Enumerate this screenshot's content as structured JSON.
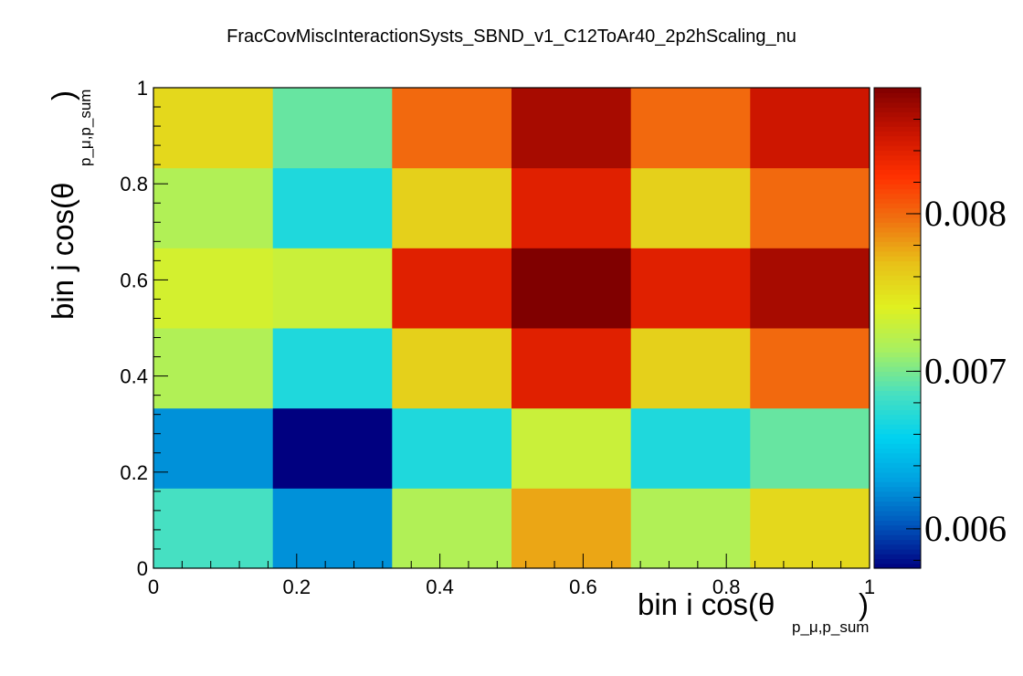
{
  "chart_data": {
    "type": "heatmap",
    "title": "FracCovMiscInteractionSysts_SBND_v1_C12ToAr40_2p2hScaling_nu",
    "xlabel": "bin i cos(θ",
    "xlabel_sub": "p_μ,p_sum",
    "xlabel_close": ")",
    "ylabel": "bin j cos(θ",
    "ylabel_sub": "p_μ,p_sum",
    "ylabel_close": ")",
    "xlim": [
      0,
      1
    ],
    "ylim": [
      0,
      1
    ],
    "x_ticks": [
      "0",
      "0.2",
      "0.4",
      "0.6",
      "0.8",
      "1"
    ],
    "y_ticks": [
      "0",
      "0.2",
      "0.4",
      "0.6",
      "0.8",
      "1"
    ],
    "x_edges": [
      0,
      0.1667,
      0.3333,
      0.5,
      0.6667,
      0.8333,
      1
    ],
    "y_edges": [
      0,
      0.1667,
      0.3333,
      0.5,
      0.6667,
      0.8333,
      1
    ],
    "z_rows_bottom_to_top": [
      [
        0.00685,
        0.00625,
        0.00718,
        0.00778,
        0.00718,
        0.00755
      ],
      [
        0.00625,
        0.00575,
        0.0067,
        0.0073,
        0.0067,
        0.00695
      ],
      [
        0.00718,
        0.0067,
        0.0076,
        0.0084,
        0.0076,
        0.008
      ],
      [
        0.00735,
        0.0073,
        0.0084,
        0.0088,
        0.0084,
        0.00865
      ],
      [
        0.00718,
        0.0067,
        0.0076,
        0.0084,
        0.0076,
        0.008
      ],
      [
        0.00755,
        0.00695,
        0.008,
        0.00865,
        0.008,
        0.0085
      ]
    ],
    "zlim": [
      0.00575,
      0.0088
    ],
    "colorbar_ticks": [
      {
        "value": 0.006,
        "label": "0.006"
      },
      {
        "value": 0.007,
        "label": "0.007"
      },
      {
        "value": 0.008,
        "label": "0.008"
      }
    ],
    "colormap": [
      "#000080",
      "#0055bb",
      "#00a0e0",
      "#00d2f0",
      "#48e0c0",
      "#a8f060",
      "#e0f020",
      "#e8c018",
      "#f07010",
      "#ff3000",
      "#c81400",
      "#800000"
    ],
    "grid": false,
    "legend": "colorbar-right"
  }
}
